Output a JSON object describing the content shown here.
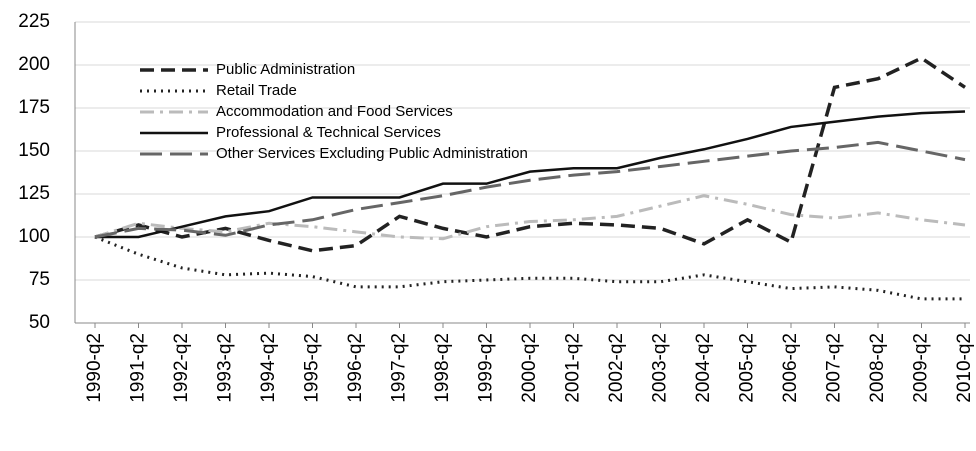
{
  "chart_data": {
    "type": "line",
    "categories": [
      "1990-q2",
      "1991-q2",
      "1992-q2",
      "1993-q2",
      "1994-q2",
      "1995-q2",
      "1996-q2",
      "1997-q2",
      "1998-q2",
      "1999-q2",
      "2000-q2",
      "2001-q2",
      "2002-q2",
      "2003-q2",
      "2004-q2",
      "2005-q2",
      "2006-q2",
      "2007-q2",
      "2008-q2",
      "2009-q2",
      "2010-q2"
    ],
    "series": [
      {
        "name": "Public Administration",
        "color": "#222222",
        "style": "dash",
        "width": 3.5,
        "values": [
          100,
          107,
          100,
          105,
          98,
          92,
          95,
          112,
          105,
          100,
          106,
          108,
          107,
          105,
          96,
          110,
          97,
          187,
          192,
          204,
          187
        ]
      },
      {
        "name": "Retail Trade",
        "color": "#222222",
        "style": "dot",
        "width": 3,
        "values": [
          100,
          90,
          82,
          78,
          79,
          77,
          71,
          71,
          74,
          75,
          76,
          76,
          74,
          74,
          78,
          74,
          70,
          71,
          69,
          64,
          64
        ]
      },
      {
        "name": "Accommodation and Food Services",
        "color": "#bbbbbb",
        "style": "dashdot",
        "width": 3,
        "values": [
          100,
          108,
          105,
          103,
          108,
          106,
          103,
          100,
          99,
          106,
          109,
          110,
          112,
          118,
          124,
          119,
          113,
          111,
          114,
          110,
          107
        ]
      },
      {
        "name": "Professional & Technical Services",
        "color": "#111111",
        "style": "solid",
        "width": 2.5,
        "values": [
          100,
          100,
          106,
          112,
          115,
          123,
          123,
          123,
          131,
          131,
          138,
          140,
          140,
          146,
          151,
          157,
          164,
          167,
          170,
          172,
          173
        ]
      },
      {
        "name": "Other Services Excluding Public Administration",
        "color": "#666666",
        "style": "longdash",
        "width": 3,
        "values": [
          100,
          105,
          104,
          101,
          107,
          110,
          116,
          120,
          124,
          129,
          133,
          136,
          138,
          141,
          144,
          147,
          150,
          152,
          155,
          150,
          145
        ]
      }
    ],
    "ylim": [
      50,
      225
    ],
    "yticks": [
      50,
      75,
      100,
      125,
      150,
      175,
      200,
      225
    ],
    "grid": true,
    "legend": "upper left"
  }
}
